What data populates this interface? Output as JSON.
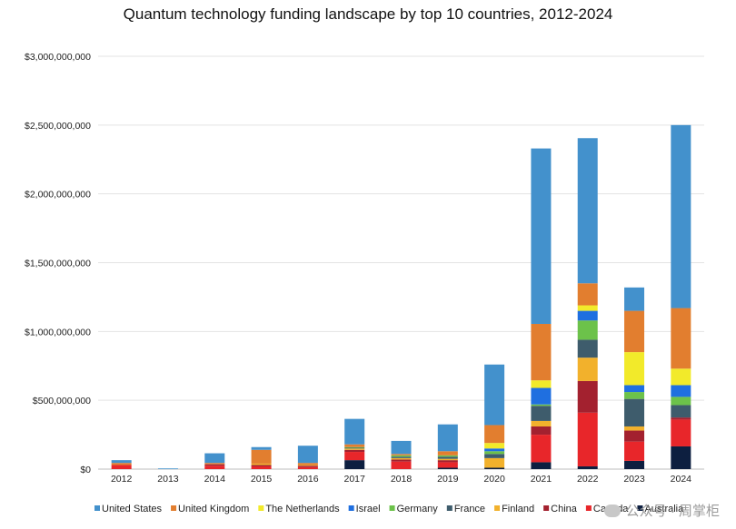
{
  "chart_data": {
    "type": "bar",
    "stacked": true,
    "title": "Quantum technology funding landscape by top 10 countries, 2012-2024",
    "xlabel": "",
    "ylabel": "",
    "ylim": [
      0,
      3000000000
    ],
    "yticks": [
      0,
      500000000,
      1000000000,
      1500000000,
      2000000000,
      2500000000,
      3000000000
    ],
    "ytick_labels": [
      "$0",
      "$500,000,000",
      "$1,000,000,000",
      "$1,500,000,000",
      "$2,000,000,000",
      "$2,500,000,000",
      "$3,000,000,000"
    ],
    "grid": true,
    "legend_position": "bottom",
    "categories": [
      "2012",
      "2013",
      "2014",
      "2015",
      "2016",
      "2017",
      "2018",
      "2019",
      "2020",
      "2021",
      "2022",
      "2023",
      "2024"
    ],
    "series": [
      {
        "name": "Australia",
        "color": "#0d1f40",
        "values": [
          0,
          0,
          0,
          0,
          0,
          65000000,
          0,
          10000000,
          10000000,
          50000000,
          20000000,
          60000000,
          165000000
        ]
      },
      {
        "name": "Canada",
        "color": "#e8262a",
        "values": [
          30000000,
          0,
          25000000,
          20000000,
          15000000,
          60000000,
          55000000,
          40000000,
          0,
          200000000,
          390000000,
          140000000,
          195000000
        ]
      },
      {
        "name": "China",
        "color": "#a3212f",
        "values": [
          0,
          0,
          10000000,
          10000000,
          10000000,
          15000000,
          15000000,
          15000000,
          0,
          60000000,
          230000000,
          80000000,
          15000000
        ]
      },
      {
        "name": "Finland",
        "color": "#f2b12c",
        "values": [
          0,
          0,
          0,
          10000000,
          5000000,
          10000000,
          10000000,
          10000000,
          70000000,
          40000000,
          170000000,
          30000000,
          0
        ]
      },
      {
        "name": "France",
        "color": "#3e5c6c",
        "values": [
          0,
          0,
          0,
          0,
          0,
          5000000,
          10000000,
          15000000,
          30000000,
          110000000,
          130000000,
          200000000,
          90000000
        ]
      },
      {
        "name": "Germany",
        "color": "#6cc24a",
        "values": [
          0,
          0,
          0,
          0,
          0,
          5000000,
          10000000,
          10000000,
          20000000,
          10000000,
          140000000,
          50000000,
          60000000
        ]
      },
      {
        "name": "Israel",
        "color": "#1f6fe0",
        "values": [
          0,
          0,
          0,
          0,
          0,
          0,
          0,
          0,
          20000000,
          120000000,
          70000000,
          50000000,
          85000000
        ]
      },
      {
        "name": "The Netherlands",
        "color": "#f2ea2a",
        "values": [
          0,
          0,
          0,
          0,
          0,
          0,
          0,
          0,
          40000000,
          55000000,
          40000000,
          240000000,
          120000000
        ]
      },
      {
        "name": "United Kingdom",
        "color": "#e27e2f",
        "values": [
          15000000,
          0,
          10000000,
          100000000,
          15000000,
          20000000,
          10000000,
          30000000,
          130000000,
          410000000,
          160000000,
          300000000,
          440000000
        ]
      },
      {
        "name": "United States",
        "color": "#4391cc",
        "values": [
          20000000,
          5000000,
          70000000,
          20000000,
          125000000,
          185000000,
          95000000,
          195000000,
          440000000,
          1275000000,
          1055000000,
          170000000,
          1330000000
        ]
      }
    ],
    "legend_order": [
      "United States",
      "United Kingdom",
      "The Netherlands",
      "Israel",
      "Germany",
      "France",
      "Finland",
      "China",
      "Canada",
      "Australia"
    ]
  },
  "watermark_text": "公众号 · 周掌柜"
}
